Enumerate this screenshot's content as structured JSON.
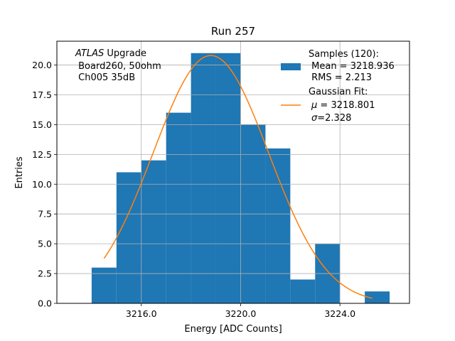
{
  "chart_data": {
    "type": "bar",
    "title": "Run 257",
    "xlabel": "Energy [ADC Counts]",
    "ylabel": "Entries",
    "xlim": [
      3212.6,
      3226.8
    ],
    "ylim": [
      0,
      22.0
    ],
    "grid": true,
    "x_ticks": [
      3216.0,
      3220.0,
      3224.0
    ],
    "x_tick_labels": [
      "3216.0",
      "3220.0",
      "3224.0"
    ],
    "y_ticks": [
      0,
      2.5,
      5.0,
      7.5,
      10.0,
      12.5,
      15.0,
      17.5,
      20.0
    ],
    "y_tick_labels": [
      "0.0",
      "2.5",
      "5.0",
      "7.5",
      "10.0",
      "12.5",
      "15.0",
      "17.5",
      "20.0"
    ],
    "histogram": {
      "name": "Samples",
      "color": "#1f77b4",
      "bin_edges": [
        3214.0,
        3215.0,
        3216.0,
        3217.0,
        3218.0,
        3219.0,
        3220.0,
        3221.0,
        3222.0,
        3223.0,
        3224.0,
        3225.0,
        3226.0
      ],
      "counts": [
        3,
        11,
        12,
        16,
        21,
        21,
        15,
        13,
        2,
        5,
        0,
        1
      ]
    },
    "fit": {
      "name": "Gaussian Fit",
      "color": "#ff7f0e",
      "mu": 3218.801,
      "sigma": 2.328,
      "amplitude": 20.8,
      "x_range": [
        3214.5,
        3225.3
      ]
    },
    "annotation": {
      "line1_italic": "ATLAS",
      "line1_rest": " Upgrade",
      "line2": " Board260, 50ohm",
      "line3": " Ch005 35dB"
    },
    "legend": {
      "position": "top-right",
      "hist_line1": "Samples (120):",
      "hist_line2": " Mean = 3218.936",
      "hist_line3": " RMS = 2.213",
      "fit_line1": "Gaussian Fit:",
      "fit_line2_symbol": "μ",
      "fit_line2_rest": " = 3218.801",
      "fit_line3_symbol": "σ",
      "fit_line3_rest": "=2.328"
    }
  }
}
